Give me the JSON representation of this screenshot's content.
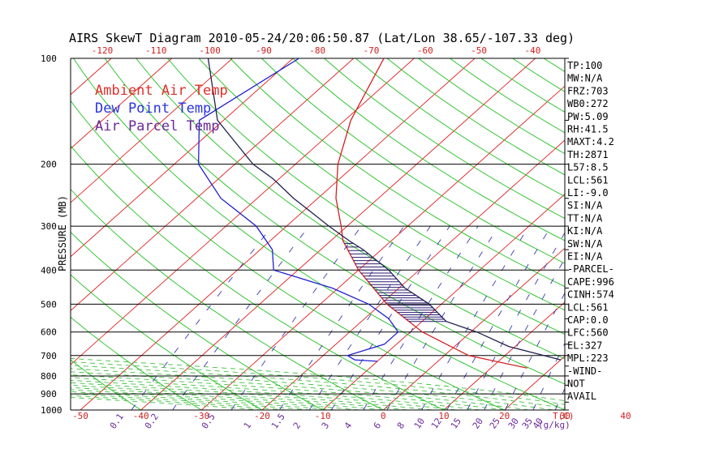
{
  "chart_data": {
    "type": "line",
    "title": "AIRS SkewT Diagram 2010-05-24/20:06:50.87 (Lat/Lon 38.65/-107.33 deg)",
    "ylabel": "PRESSURE (MB)",
    "xlabel_right": "T(C)",
    "mixing_label": "(g/kg)",
    "y_scale": "log",
    "ylim": [
      1000,
      100
    ],
    "xlim_bottom": [
      -50,
      25
    ],
    "pressure_ticks": [
      100,
      200,
      300,
      400,
      500,
      600,
      700,
      800,
      900,
      1000
    ],
    "top_temp_ticks": [
      -120,
      -110,
      -100,
      -90,
      -80,
      -70,
      -60,
      -50,
      -40
    ],
    "bottom_temp_ticks": [
      -50,
      -40,
      -30,
      -20,
      -10,
      0,
      10,
      20,
      30,
      40
    ],
    "mixing_ratio_ticks": [
      "0.1",
      "0.2",
      "0.5",
      "1",
      "1.5",
      "2",
      "3",
      "4",
      "6",
      "8",
      "10",
      "12",
      "15",
      "20",
      "25",
      "30",
      "35",
      "40"
    ],
    "legend": [
      {
        "name": "Ambient Air Temp",
        "color": "#e0302a"
      },
      {
        "name": "Dew Point Temp",
        "color": "#2a34e0"
      },
      {
        "name": "Air Parcel Temp",
        "color": "#6a2a9a"
      }
    ],
    "grid": true,
    "series": [
      {
        "name": "Ambient Air Temp",
        "color": "#d42020",
        "points": [
          [
            760,
            16
          ],
          [
            700,
            4
          ],
          [
            600,
            -8
          ],
          [
            500,
            -19
          ],
          [
            400,
            -30
          ],
          [
            330,
            -38
          ],
          [
            300,
            -41
          ],
          [
            250,
            -47
          ],
          [
            200,
            -53
          ],
          [
            150,
            -59
          ],
          [
            100,
            -65
          ]
        ]
      },
      {
        "name": "Dew Point Temp",
        "color": "#2020d0",
        "points": [
          [
            727,
            -10
          ],
          [
            720,
            -14
          ],
          [
            700,
            -16
          ],
          [
            650,
            -12
          ],
          [
            600,
            -12
          ],
          [
            550,
            -16
          ],
          [
            500,
            -22
          ],
          [
            450,
            -31
          ],
          [
            400,
            -44
          ],
          [
            350,
            -48
          ],
          [
            300,
            -55
          ],
          [
            250,
            -66
          ],
          [
            200,
            -76
          ],
          [
            150,
            -84
          ],
          [
            100,
            -79
          ]
        ]
      },
      {
        "name": "Air Parcel Temp",
        "color": "#202050",
        "points": [
          [
            720,
            20
          ],
          [
            660,
            9
          ],
          [
            600,
            1
          ],
          [
            560,
            -6
          ],
          [
            500,
            -12
          ],
          [
            450,
            -19
          ],
          [
            400,
            -25
          ],
          [
            350,
            -33
          ],
          [
            330,
            -37
          ],
          [
            300,
            -43
          ],
          [
            250,
            -54
          ],
          [
            220,
            -61
          ],
          [
            200,
            -67
          ],
          [
            150,
            -81
          ],
          [
            100,
            -94
          ]
        ]
      }
    ]
  },
  "indices": [
    "TP:100",
    "MW:N/A",
    "FRZ:703",
    "WB0:272",
    "PW:5.09",
    "RH:41.5",
    "MAXT:4.2",
    "TH:2871",
    "L57:8.5",
    "LCL:561",
    "LI:-9.0",
    "SI:N/A",
    "TT:N/A",
    "KI:N/A",
    "SW:N/A",
    "EI:N/A",
    "-PARCEL-",
    "CAPE:996",
    "CINH:574",
    "LCL:561",
    "CAP:0.0",
    "LFC:560",
    "EL:327",
    "MPL:223",
    "-WIND-",
    "NOT",
    "AVAIL"
  ],
  "colors": {
    "isotherm": "#e02020",
    "dry_adiabat": "#20c020",
    "moist_adiabat": "#40c040",
    "mixing_ratio": "#3a3ab0",
    "cape_hatch": "#2a1a70",
    "tick_text": "#d02020"
  }
}
